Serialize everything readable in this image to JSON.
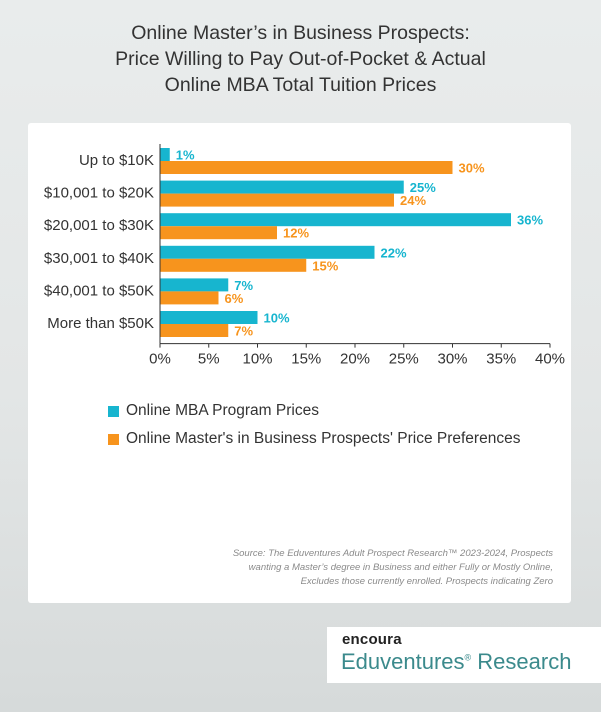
{
  "title_lines": [
    "Online Master’s in Business Prospects:",
    "Price Willing to Pay Out-of-Pocket & Actual",
    "Online MBA Total Tuition Prices"
  ],
  "source_lines": [
    "Source: The Eduventures Adult Prospect Research™ 2023-2024, Prospects",
    "wanting a Master’s degree in Business and either Fully or Mostly Online,",
    "Excludes those currently enrolled. Prospects indicating Zero"
  ],
  "brand": {
    "top": "encoura",
    "bottom": "Eduventures",
    "bottom_tail": " Research",
    "reg_mark": "®"
  },
  "chart_data": {
    "type": "bar",
    "orientation": "horizontal",
    "categories": [
      "Up to $10K",
      "$10,001 to $20K",
      "$20,001 to $30K",
      "$30,001 to $40K",
      "$40,001 to $50K",
      "More than $50K"
    ],
    "series": [
      {
        "name": "Online MBA Program Prices",
        "color": "#17b5cf",
        "values": [
          1,
          25,
          36,
          22,
          7,
          10
        ]
      },
      {
        "name": "Online Master's in Business Prospects' Price Preferences",
        "color": "#f7941d",
        "values": [
          30,
          24,
          12,
          15,
          6,
          7
        ]
      }
    ],
    "data_labels": [
      [
        "1%",
        "25%",
        "36%",
        "22%",
        "7%",
        "10%"
      ],
      [
        "30%",
        "24%",
        "12%",
        "15%",
        "6%",
        "7%"
      ]
    ],
    "x_ticks": [
      "0%",
      "5%",
      "10%",
      "15%",
      "20%",
      "25%",
      "30%",
      "35%",
      "40%"
    ],
    "xlim": [
      0,
      40
    ],
    "grid": false,
    "legend_position": "bottom-left"
  }
}
